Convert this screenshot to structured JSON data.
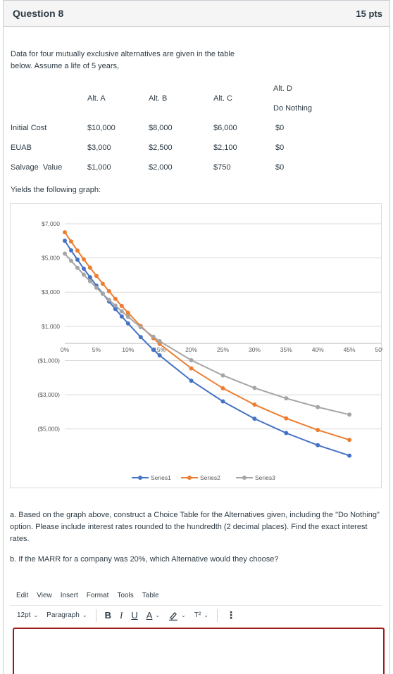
{
  "question": {
    "title": "Question 8",
    "points": "15 pts",
    "intro_line1": "Data for four mutually exclusive alternatives are given in the table",
    "intro_line2": "below. Assume a life of 5 years,",
    "yields": "Yields the following graph:",
    "part_a": "a. Based on the graph above, construct a Choice Table for the Alternatives given, including the \"Do Nothing\" option. Please include interest rates rounded to the hundredth (2 decimal places). Find the exact interest rates.",
    "part_b": "b. If the MARR for a company was 20%, which Alternative would they choose?"
  },
  "table": {
    "headers": [
      "Alt. A",
      "Alt. B",
      "Alt. C",
      "Alt. D"
    ],
    "header_d_sub": "Do Nothing",
    "rows": [
      {
        "label": "Initial Cost",
        "values": [
          "$10,000",
          "$8,000",
          "$6,000",
          "$0"
        ]
      },
      {
        "label": "EUAB",
        "values": [
          "$3,000",
          "$2,500",
          "$2,100",
          "$0"
        ]
      },
      {
        "label": "Salvage  Value",
        "values": [
          "$1,000",
          "$2,000",
          "$750",
          "$0"
        ]
      }
    ]
  },
  "chart_data": {
    "type": "line",
    "x": [
      0,
      1,
      2,
      3,
      4,
      5,
      6,
      7,
      8,
      9,
      10,
      12,
      14,
      15,
      20,
      25,
      30,
      35,
      40,
      45
    ],
    "x_ticks": [
      "0%",
      "5%",
      "10%",
      "15%",
      "20%",
      "25%",
      "30%",
      "35%",
      "40%",
      "45%",
      "50%"
    ],
    "y_ticks": [
      "$7,000",
      "$5,000",
      "$3,000",
      "$1,000",
      "($1,000)",
      "($3,000)",
      "($5,000)"
    ],
    "ylim": [
      -6000,
      7000
    ],
    "xlim": [
      0,
      50
    ],
    "grid": true,
    "legend_position": "bottom",
    "series": [
      {
        "name": "Series1",
        "color": "#4472c4",
        "values": [
          6000,
          5440,
          4900,
          4370,
          3870,
          3380,
          2910,
          2450,
          2010,
          1580,
          1170,
          370,
          -370,
          -700,
          -2180,
          -3390,
          -4400,
          -5240,
          -5950,
          -6560
        ]
      },
      {
        "name": "Series2",
        "color": "#ed7d31",
        "values": [
          6500,
          5960,
          5430,
          4920,
          4430,
          3950,
          3490,
          3050,
          2610,
          2190,
          1790,
          1020,
          310,
          -30,
          -1460,
          -2620,
          -3580,
          -4380,
          -5060,
          -5640
        ]
      },
      {
        "name": "Series3",
        "color": "#a5a5a5",
        "values": [
          5250,
          4830,
          4420,
          4020,
          3640,
          3260,
          2900,
          2550,
          2210,
          1880,
          1560,
          950,
          390,
          130,
          -980,
          -1870,
          -2600,
          -3210,
          -3720,
          -4160
        ]
      }
    ]
  },
  "editor": {
    "menu": [
      "Edit",
      "View",
      "Insert",
      "Format",
      "Tools",
      "Table"
    ],
    "font_size": "12pt",
    "block_format": "Paragraph",
    "bold": "B",
    "italic": "I",
    "underline": "U",
    "text_color": "A",
    "superscript": "T²",
    "more": "⋮"
  }
}
